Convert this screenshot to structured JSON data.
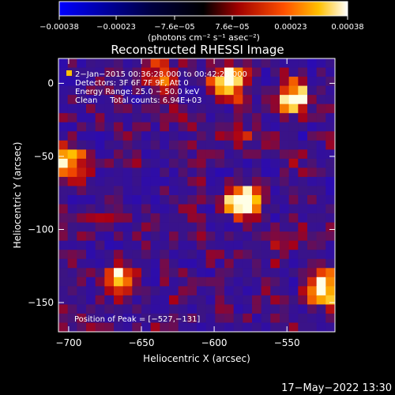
{
  "chart_data": {
    "type": "heatmap",
    "title": "Reconstructed RHESSI Image",
    "xlabel": "Heliocentric X (arcsec)",
    "ylabel": "Heliocentric Y (arcsec)",
    "xlim": [
      -707,
      -517
    ],
    "ylim": [
      -170,
      17
    ],
    "x_ticks": [
      -700,
      -650,
      -600,
      -550
    ],
    "x_tick_labels": [
      "−700",
      "−650",
      "−600",
      "−550"
    ],
    "y_ticks": [
      0,
      -50,
      -100,
      -150
    ],
    "y_tick_labels": [
      "0",
      "−50",
      "−100",
      "−150"
    ],
    "colorbar": {
      "range": [
        -0.00038,
        0.00038
      ],
      "ticks": [
        -0.00038,
        -0.00023,
        -7.6e-05,
        7.6e-05,
        0.00023,
        0.00038
      ],
      "tick_labels": [
        "−0.00038",
        "−0.00023",
        "−7.6e−05",
        "7.6e−05",
        "0.00023",
        "0.00038"
      ],
      "unit_label": "(photons cm⁻² s⁻¹ asec⁻²)"
    },
    "info_lines": [
      "2−Jan−2015 00:36:28.000 to 00:42:28.000",
      "Detectors: 3F 6F 7F 9F, Att 0",
      "Energy Range: 25.0 − 50.0 keV",
      "Clean     Total counts: 6.94E+03"
    ],
    "peak_label": "Position of Peak = [−527,−131]",
    "sources": [
      {
        "x": -580,
        "y": -80,
        "strength": 1.0
      },
      {
        "x": -590,
        "y": 0,
        "strength": 0.85
      },
      {
        "x": -545,
        "y": -10,
        "strength": 0.75
      },
      {
        "x": -525,
        "y": -140,
        "strength": 0.9
      },
      {
        "x": -665,
        "y": -135,
        "strength": 0.8
      },
      {
        "x": -700,
        "y": -55,
        "strength": 0.7
      },
      {
        "x": -640,
        "y": 5,
        "strength": 0.45
      }
    ]
  },
  "footer": {
    "timestamp": "17−May−2022 13:30"
  }
}
